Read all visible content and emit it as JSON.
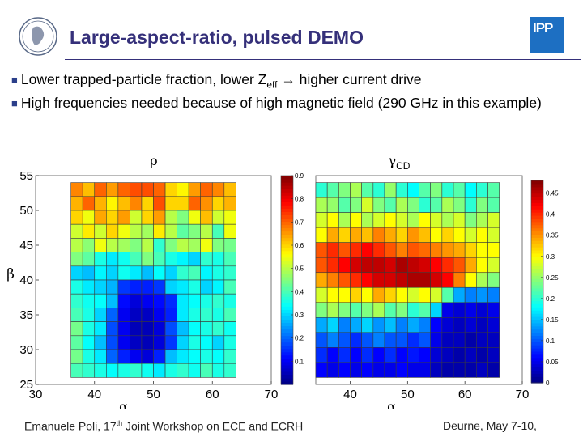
{
  "slide": {
    "title": "Large-aspect-ratio, pulsed DEMO",
    "right_logo_text": "IPP",
    "left_logo_name": "Max Planck emblem"
  },
  "bullets": [
    {
      "pre": "Lower trapped-particle fraction, lower Z",
      "sub": "eff",
      "post": " → higher current drive"
    },
    {
      "text": "High frequencies needed because of high magnetic field (290 GHz in this example)"
    }
  ],
  "footer": {
    "left_pre": "Emanuele Poli, 17",
    "left_sup": "th",
    "left_post": " Joint Workshop on ECE and ECRH",
    "right": "Deurne, May 7-10,"
  },
  "chart_data": [
    {
      "type": "heatmap",
      "title": "ρ",
      "xlabel": "α",
      "ylabel": "β",
      "xlim": [
        30,
        70
      ],
      "ylim": [
        25,
        55
      ],
      "xticks": [
        "30",
        "40",
        "50",
        "60",
        "70"
      ],
      "yticks": [
        "25",
        "30",
        "35",
        "40",
        "45",
        "50",
        "55"
      ],
      "colorbar": {
        "min": 0,
        "max": 0.9,
        "ticks": [
          "0.1",
          "0.2",
          "0.3",
          "0.4",
          "0.5",
          "0.6",
          "0.7",
          "0.8",
          "0.9"
        ]
      },
      "x_range": [
        36,
        64
      ],
      "y_range": [
        26,
        54
      ],
      "rows_top_to_bottom": [
        [
          0.67,
          0.62,
          0.7,
          0.65,
          0.7,
          0.72,
          0.72,
          0.7,
          0.6,
          0.57,
          0.65,
          0.7,
          0.67,
          0.62
        ],
        [
          0.63,
          0.7,
          0.63,
          0.57,
          0.62,
          0.67,
          0.6,
          0.72,
          0.6,
          0.6,
          0.7,
          0.66,
          0.6,
          0.63
        ],
        [
          0.6,
          0.55,
          0.64,
          0.6,
          0.65,
          0.52,
          0.6,
          0.65,
          0.5,
          0.45,
          0.55,
          0.62,
          0.52,
          0.55
        ],
        [
          0.52,
          0.58,
          0.52,
          0.6,
          0.55,
          0.5,
          0.48,
          0.58,
          0.5,
          0.42,
          0.45,
          0.5,
          0.4,
          0.55
        ],
        [
          0.5,
          0.46,
          0.55,
          0.5,
          0.48,
          0.45,
          0.5,
          0.38,
          0.45,
          0.5,
          0.48,
          0.55,
          0.45,
          0.44
        ],
        [
          0.45,
          0.42,
          0.36,
          0.32,
          0.35,
          0.4,
          0.45,
          0.4,
          0.36,
          0.33,
          0.3,
          0.38,
          0.36,
          0.4
        ],
        [
          0.3,
          0.28,
          0.33,
          0.3,
          0.35,
          0.32,
          0.28,
          0.34,
          0.3,
          0.38,
          0.4,
          0.33,
          0.36,
          0.38
        ],
        [
          0.36,
          0.32,
          0.3,
          0.27,
          0.16,
          0.14,
          0.14,
          0.16,
          0.3,
          0.32,
          0.36,
          0.3,
          0.33,
          0.4
        ],
        [
          0.38,
          0.35,
          0.34,
          0.28,
          0.12,
          0.08,
          0.1,
          0.12,
          0.15,
          0.32,
          0.34,
          0.36,
          0.38,
          0.36
        ],
        [
          0.4,
          0.36,
          0.3,
          0.2,
          0.1,
          0.06,
          0.06,
          0.1,
          0.14,
          0.32,
          0.36,
          0.38,
          0.36,
          0.4
        ],
        [
          0.44,
          0.36,
          0.32,
          0.18,
          0.1,
          0.05,
          0.05,
          0.08,
          0.18,
          0.28,
          0.34,
          0.36,
          0.38,
          0.35
        ],
        [
          0.42,
          0.34,
          0.28,
          0.18,
          0.1,
          0.06,
          0.05,
          0.08,
          0.16,
          0.3,
          0.36,
          0.34,
          0.3,
          0.36
        ],
        [
          0.44,
          0.36,
          0.32,
          0.2,
          0.14,
          0.1,
          0.08,
          0.14,
          0.28,
          0.32,
          0.34,
          0.36,
          0.34,
          0.38
        ],
        [
          0.4,
          0.38,
          0.36,
          0.34,
          0.36,
          0.38,
          0.35,
          0.32,
          0.36,
          0.38,
          0.35,
          0.4,
          0.36,
          0.38
        ]
      ]
    },
    {
      "type": "heatmap",
      "title": "γ",
      "title_sub": "CD",
      "xlabel": "α",
      "xlim": [
        34,
        70
      ],
      "ylim": [
        25,
        55
      ],
      "xticks": [
        "40",
        "50",
        "60",
        "70"
      ],
      "colorbar": {
        "min": 0,
        "max": 0.48,
        "ticks": [
          "0",
          "0.05",
          "0.1",
          "0.15",
          "0.2",
          "0.25",
          "0.3",
          "0.35",
          "0.4",
          "0.45"
        ]
      },
      "x_range": [
        34,
        66
      ],
      "y_range": [
        26,
        54
      ],
      "rows_top_to_bottom": [
        [
          0.2,
          0.22,
          0.24,
          0.26,
          0.22,
          0.2,
          0.25,
          0.2,
          0.18,
          0.22,
          0.24,
          0.2,
          0.22,
          0.18,
          0.2,
          0.22
        ],
        [
          0.26,
          0.25,
          0.22,
          0.24,
          0.28,
          0.24,
          0.22,
          0.26,
          0.24,
          0.2,
          0.22,
          0.26,
          0.24,
          0.2,
          0.24,
          0.22
        ],
        [
          0.28,
          0.3,
          0.26,
          0.3,
          0.26,
          0.28,
          0.3,
          0.28,
          0.26,
          0.3,
          0.28,
          0.26,
          0.28,
          0.24,
          0.26,
          0.28
        ],
        [
          0.3,
          0.34,
          0.32,
          0.34,
          0.33,
          0.36,
          0.34,
          0.32,
          0.35,
          0.33,
          0.3,
          0.32,
          0.3,
          0.28,
          0.3,
          0.28
        ],
        [
          0.38,
          0.4,
          0.38,
          0.4,
          0.42,
          0.4,
          0.38,
          0.36,
          0.38,
          0.37,
          0.36,
          0.35,
          0.34,
          0.32,
          0.3,
          0.3
        ],
        [
          0.38,
          0.4,
          0.42,
          0.44,
          0.45,
          0.45,
          0.44,
          0.46,
          0.45,
          0.44,
          0.42,
          0.4,
          0.38,
          0.34,
          0.3,
          0.28
        ],
        [
          0.34,
          0.36,
          0.38,
          0.4,
          0.42,
          0.44,
          0.44,
          0.45,
          0.46,
          0.46,
          0.44,
          0.42,
          0.36,
          0.3,
          0.26,
          0.24
        ],
        [
          0.28,
          0.3,
          0.3,
          0.32,
          0.3,
          0.34,
          0.32,
          0.3,
          0.28,
          0.3,
          0.28,
          0.22,
          0.14,
          0.12,
          0.13,
          0.12
        ],
        [
          0.24,
          0.26,
          0.24,
          0.22,
          0.24,
          0.26,
          0.22,
          0.24,
          0.2,
          0.22,
          0.16,
          0.05,
          0.04,
          0.05,
          0.04,
          0.05
        ],
        [
          0.14,
          0.16,
          0.12,
          0.14,
          0.16,
          0.13,
          0.15,
          0.12,
          0.14,
          0.12,
          0.06,
          0.04,
          0.03,
          0.04,
          0.03,
          0.04
        ],
        [
          0.1,
          0.12,
          0.1,
          0.08,
          0.1,
          0.12,
          0.1,
          0.1,
          0.08,
          0.1,
          0.05,
          0.03,
          0.03,
          0.02,
          0.03,
          0.03
        ],
        [
          0.08,
          0.06,
          0.08,
          0.06,
          0.08,
          0.06,
          0.08,
          0.06,
          0.07,
          0.06,
          0.04,
          0.03,
          0.02,
          0.03,
          0.02,
          0.03
        ],
        [
          0.06,
          0.05,
          0.06,
          0.05,
          0.06,
          0.05,
          0.05,
          0.06,
          0.05,
          0.05,
          0.03,
          0.02,
          0.02,
          0.02,
          0.03,
          0.02
        ]
      ]
    }
  ]
}
